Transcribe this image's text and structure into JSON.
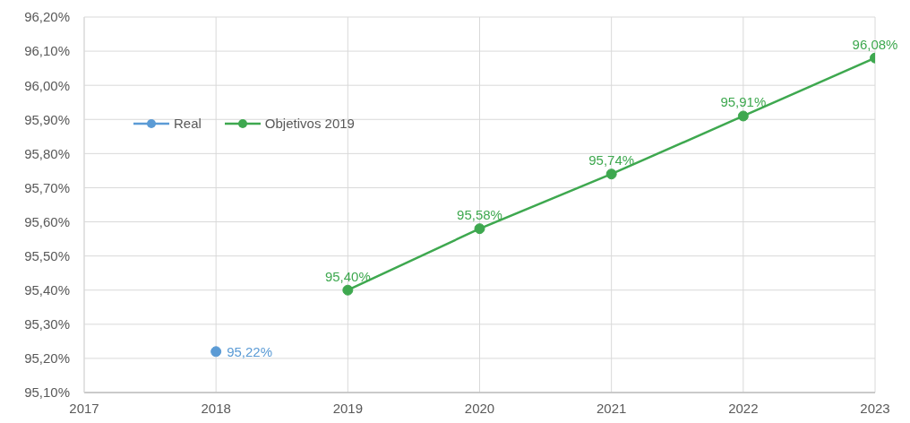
{
  "chart_data": {
    "type": "line",
    "xlim": [
      2017,
      2023
    ],
    "xticks": [
      2017,
      2018,
      2019,
      2020,
      2021,
      2022,
      2023
    ],
    "ylim": [
      95.1,
      96.2
    ],
    "yticks": [
      {
        "value": 95.1,
        "label": "95,10%"
      },
      {
        "value": 95.2,
        "label": "95,20%"
      },
      {
        "value": 95.3,
        "label": "95,30%"
      },
      {
        "value": 95.4,
        "label": "95,40%"
      },
      {
        "value": 95.5,
        "label": "95,50%"
      },
      {
        "value": 95.6,
        "label": "95,60%"
      },
      {
        "value": 95.7,
        "label": "95,70%"
      },
      {
        "value": 95.8,
        "label": "95,80%"
      },
      {
        "value": 95.9,
        "label": "95,90%"
      },
      {
        "value": 96.0,
        "label": "96,00%"
      },
      {
        "value": 96.1,
        "label": "96,10%"
      },
      {
        "value": 96.2,
        "label": "96,20%"
      }
    ],
    "grid": true,
    "legend": "top left",
    "marker": "circle",
    "series": [
      {
        "name": "Real",
        "color": "#5b9bd5",
        "x": [
          2018
        ],
        "values": [
          95.22
        ],
        "value_labels": [
          "95,22%"
        ]
      },
      {
        "name": "Objetivos 2019",
        "color": "#3ea84f",
        "x": [
          2019,
          2020,
          2021,
          2022,
          2023
        ],
        "values": [
          95.4,
          95.58,
          95.74,
          95.91,
          96.08
        ],
        "value_labels": [
          "95,40%",
          "95,58%",
          "95,74%",
          "95,91%",
          "96,08%"
        ]
      }
    ]
  }
}
